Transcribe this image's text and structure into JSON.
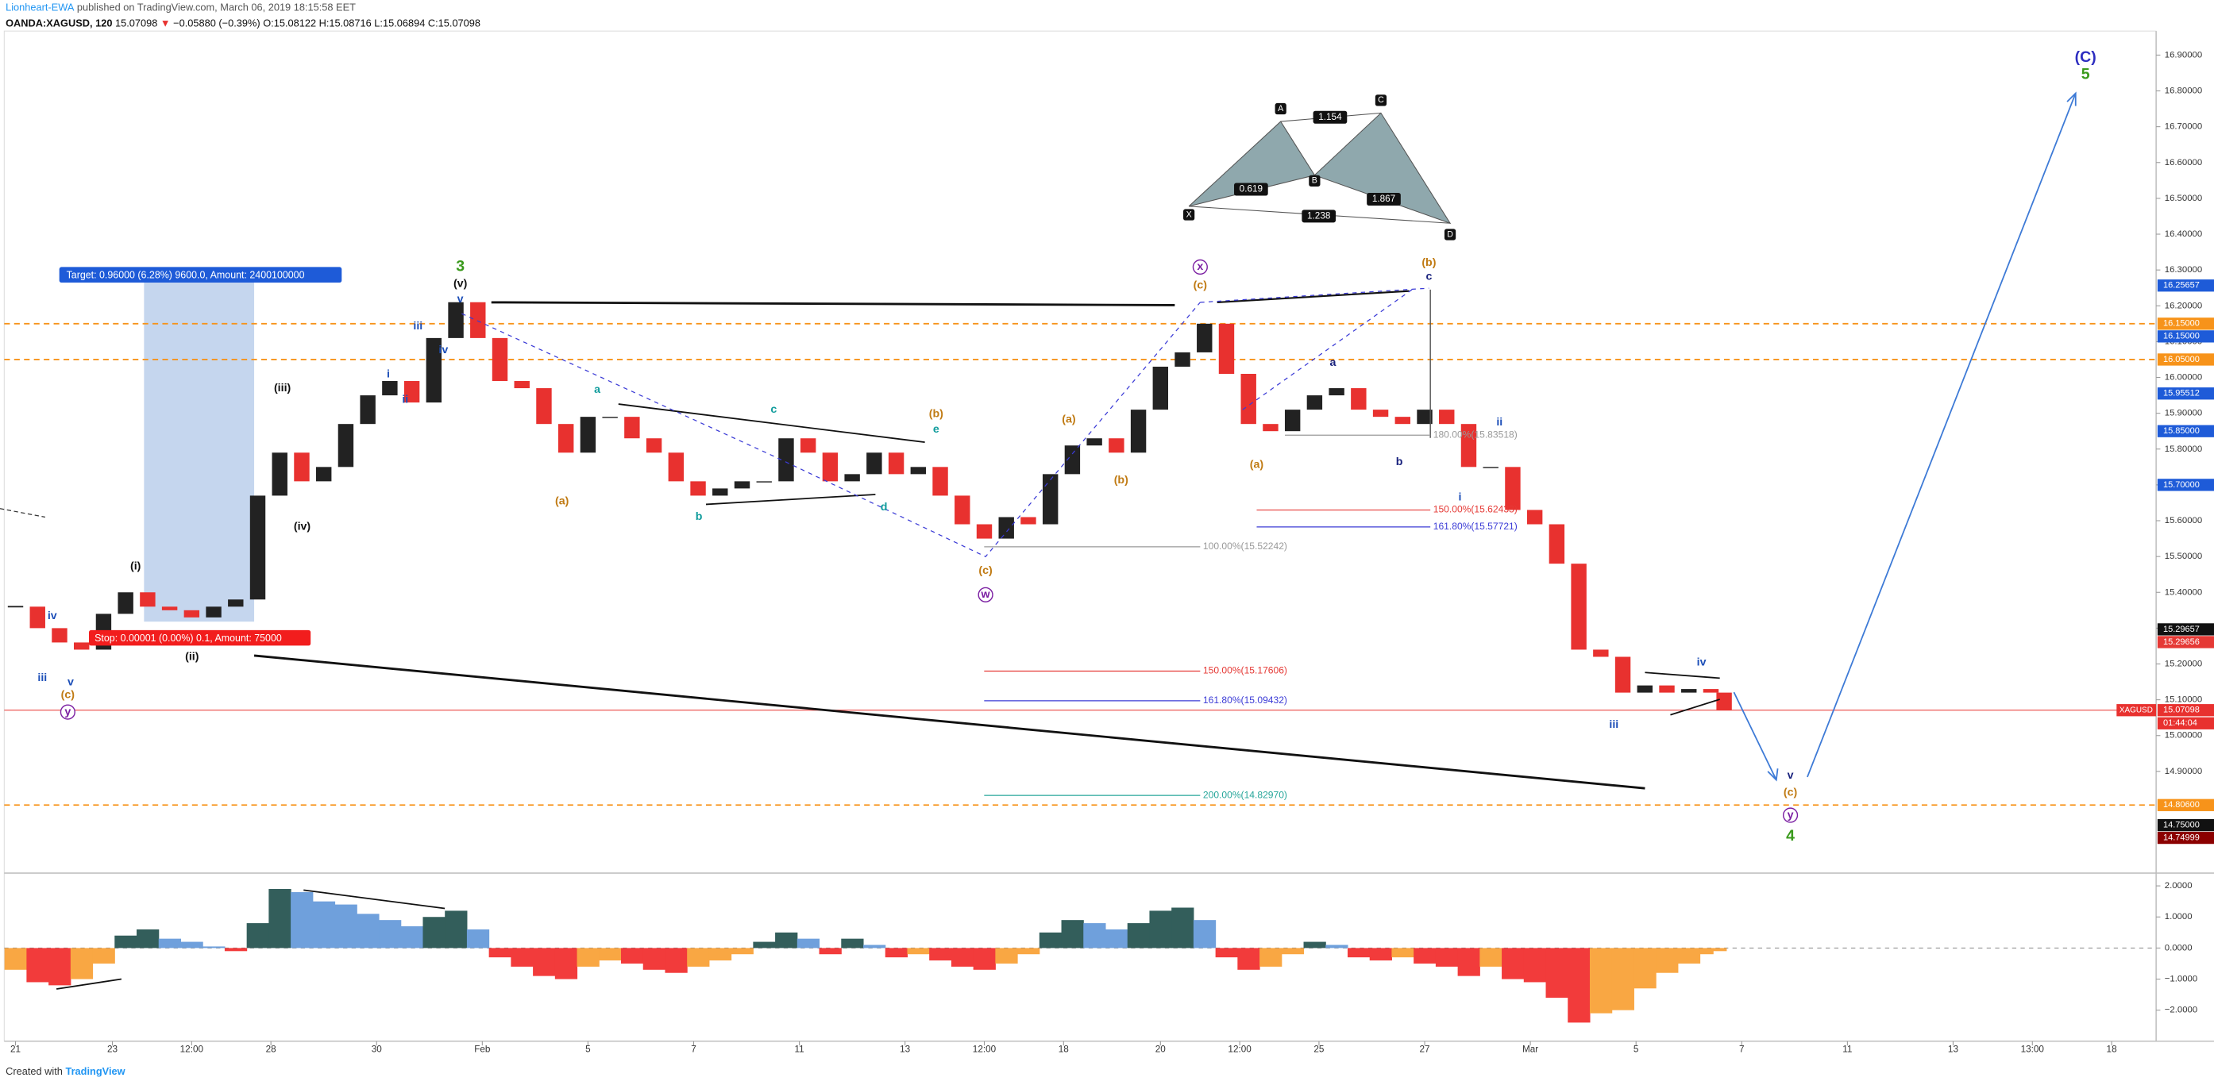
{
  "header": {
    "author": "Lionheart-EWA",
    "published": "published on TradingView.com, March 06, 2019 18:15:58 EET",
    "symbol": "OANDA:XAGUSD, 120",
    "last": "15.07098",
    "arrow": "▼",
    "change": "−0.05880 (−0.39%)",
    "ohlc": "O:15.08122 H:15.08716 L:15.06894 C:15.07098"
  },
  "footer": {
    "prefix": "Created with",
    "brand": "TradingView"
  },
  "position": {
    "target": "Target: 0.96000 (6.28%) 9600.0, Amount: 2400100000",
    "stop": "Stop: 0.00001 (0.00%) 0.1, Amount: 75000"
  },
  "harmonic": {
    "points": [
      "X",
      "A",
      "B",
      "C",
      "D"
    ],
    "ratios": [
      "0.619",
      "1.154",
      "1.867",
      "1.238"
    ]
  },
  "fib_levels": [
    "100.00%(15.52242)",
    "150.00%(15.17606)",
    "161.80%(15.09432)",
    "200.00%(14.82970)",
    "150.00%(15.62433)",
    "161.80%(15.57721)",
    "180.00%(15.83518)"
  ],
  "annotations": [
    {
      "text": "(C)",
      "color": "#2d2dc0"
    },
    {
      "text": "5",
      "color": "#3a9a1c"
    },
    {
      "text": "3",
      "color": "#3a9a1c"
    },
    {
      "text": "(v)",
      "color": "#111111"
    },
    {
      "text": "v",
      "color": "#1d4fb8"
    },
    {
      "text": "iii",
      "color": "#1d4fb8"
    },
    {
      "text": "i",
      "color": "#1d4fb8"
    },
    {
      "text": "ii",
      "color": "#1d4fb8"
    },
    {
      "text": "iv",
      "color": "#1d4fb8"
    },
    {
      "text": "(iii)",
      "color": "#111111"
    },
    {
      "text": "(iv)",
      "color": "#111111"
    },
    {
      "text": "(i)",
      "color": "#111111"
    },
    {
      "text": "(ii)",
      "color": "#111111"
    },
    {
      "text": "iv",
      "color": "#1d4fb8"
    },
    {
      "text": "iii",
      "color": "#1d4fb8"
    },
    {
      "text": "v",
      "color": "#1d4fb8"
    },
    {
      "text": "(c)",
      "color": "#c07a12"
    },
    {
      "text": "y",
      "color": "#7b1fa2"
    },
    {
      "text": "a",
      "color": "#109c9c"
    },
    {
      "text": "b",
      "color": "#109c9c"
    },
    {
      "text": "c",
      "color": "#109c9c"
    },
    {
      "text": "d",
      "color": "#109c9c"
    },
    {
      "text": "e",
      "color": "#109c9c"
    },
    {
      "text": "(b)",
      "color": "#c07a12"
    },
    {
      "text": "(a)",
      "color": "#c07a12"
    },
    {
      "text": "(c)",
      "color": "#c07a12"
    },
    {
      "text": "w",
      "color": "#7b1fa2"
    },
    {
      "text": "(a)",
      "color": "#c07a12"
    },
    {
      "text": "(b)",
      "color": "#c07a12"
    },
    {
      "text": "(c)",
      "color": "#c07a12"
    },
    {
      "text": "x",
      "color": "#7b1fa2"
    },
    {
      "text": "(a)",
      "color": "#c07a12"
    },
    {
      "text": "a",
      "color": "#1a237e"
    },
    {
      "text": "b",
      "color": "#1a237e"
    },
    {
      "text": "c",
      "color": "#1a237e"
    },
    {
      "text": "(b)",
      "color": "#c07a12"
    },
    {
      "text": "i",
      "color": "#1d4fb8"
    },
    {
      "text": "ii",
      "color": "#1d4fb8"
    },
    {
      "text": "iii",
      "color": "#1d4fb8"
    },
    {
      "text": "iv",
      "color": "#1d4fb8"
    },
    {
      "text": "v",
      "color": "#1a237e"
    },
    {
      "text": "(c)",
      "color": "#c07a12"
    },
    {
      "text": "y",
      "color": "#7b1fa2"
    },
    {
      "text": "4",
      "color": "#3a9a1c"
    }
  ],
  "chart_data": [
    {
      "type": "candlestick",
      "x": [
        0,
        5,
        10,
        15,
        20,
        25,
        30,
        35,
        40,
        45,
        50,
        55,
        60,
        65,
        70,
        75,
        80,
        85,
        90,
        95,
        100,
        105,
        110,
        115,
        120,
        125,
        130,
        135,
        140,
        145,
        150,
        155,
        160,
        165,
        170,
        175,
        180,
        185,
        190,
        195,
        200,
        205,
        210,
        215,
        220,
        225,
        230,
        235,
        240,
        245,
        250,
        255,
        260,
        265,
        270,
        275,
        280,
        285,
        290,
        295,
        300,
        305,
        310,
        315,
        320,
        325,
        330,
        335,
        340,
        345,
        350,
        355,
        360,
        365,
        370,
        375,
        380,
        385,
        388
      ],
      "series": [
        {
          "name": "XAGUSD",
          "up_color": "#222222",
          "down_color": "#e8312f",
          "values": [
            15.36,
            15.3,
            15.26,
            15.24,
            15.34,
            15.4,
            15.36,
            15.35,
            15.33,
            15.36,
            15.38,
            15.67,
            15.79,
            15.71,
            15.75,
            15.87,
            15.95,
            15.99,
            15.93,
            16.11,
            16.21,
            16.11,
            15.99,
            15.97,
            15.87,
            15.79,
            15.89,
            15.89,
            15.83,
            15.79,
            15.71,
            15.67,
            15.69,
            15.71,
            15.71,
            15.83,
            15.79,
            15.71,
            15.73,
            15.79,
            15.73,
            15.75,
            15.67,
            15.59,
            15.55,
            15.61,
            15.59,
            15.73,
            15.81,
            15.83,
            15.79,
            15.91,
            16.03,
            16.07,
            16.15,
            16.01,
            15.87,
            15.85,
            15.91,
            15.95,
            15.97,
            15.91,
            15.89,
            15.87,
            15.91,
            15.87,
            15.75,
            15.75,
            15.63,
            15.59,
            15.48,
            15.24,
            15.22,
            15.12,
            15.14,
            15.12,
            15.13,
            15.12,
            15.07098
          ]
        }
      ],
      "xlim": [
        -2.56,
        486.1
      ],
      "ylim": [
        14.62,
        16.967
      ],
      "xticks": [
        {
          "value": 0,
          "label": "21"
        },
        {
          "value": 22,
          "label": "23"
        },
        {
          "value": 40,
          "label": "12:00"
        },
        {
          "value": 58,
          "label": "28"
        },
        {
          "value": 82,
          "label": "30"
        },
        {
          "value": 106,
          "label": "Feb"
        },
        {
          "value": 130,
          "label": "5"
        },
        {
          "value": 154,
          "label": "7"
        },
        {
          "value": 178,
          "label": "11"
        },
        {
          "value": 202,
          "label": "13"
        },
        {
          "value": 220,
          "label": "12:00"
        },
        {
          "value": 238,
          "label": "18"
        },
        {
          "value": 260,
          "label": "20"
        },
        {
          "value": 278,
          "label": "12:00"
        },
        {
          "value": 296,
          "label": "25"
        },
        {
          "value": 320,
          "label": "27"
        },
        {
          "value": 344,
          "label": "Mar"
        },
        {
          "value": 368,
          "label": "5"
        },
        {
          "value": 392,
          "label": "7"
        },
        {
          "value": 416,
          "label": "11"
        },
        {
          "value": 440,
          "label": "13"
        },
        {
          "value": 458,
          "label": "13:00"
        },
        {
          "value": 476,
          "label": "18"
        }
      ],
      "yticks": [
        {
          "value": 14.9,
          "label": "14.90000"
        },
        {
          "value": 15.0,
          "label": "15.00000"
        },
        {
          "value": 15.1,
          "label": "15.10000"
        },
        {
          "value": 15.2,
          "label": "15.20000"
        },
        {
          "value": 15.3,
          "label": "15.30000"
        },
        {
          "value": 15.4,
          "label": "15.40000"
        },
        {
          "value": 15.5,
          "label": "15.50000"
        },
        {
          "value": 15.6,
          "label": "15.60000"
        },
        {
          "value": 15.7,
          "label": "15.70000"
        },
        {
          "value": 15.8,
          "label": "15.80000"
        },
        {
          "value": 15.9,
          "label": "15.90000"
        },
        {
          "value": 16.0,
          "label": "16.00000"
        },
        {
          "value": 16.1,
          "label": "16.10000"
        },
        {
          "value": 16.2,
          "label": "16.20000"
        },
        {
          "value": 16.3,
          "label": "16.30000"
        },
        {
          "value": 16.4,
          "label": "16.40000"
        },
        {
          "value": 16.5,
          "label": "16.50000"
        },
        {
          "value": 16.6,
          "label": "16.60000"
        },
        {
          "value": 16.7,
          "label": "16.70000"
        },
        {
          "value": 16.8,
          "label": "16.80000"
        },
        {
          "value": 16.9,
          "label": "16.90000"
        }
      ],
      "hlines": [
        {
          "value": 16.15,
          "color": "#f7931a",
          "dashed": true
        },
        {
          "value": 16.05,
          "color": "#f7931a",
          "dashed": true
        },
        {
          "value": 14.806,
          "color": "#f7931a",
          "dashed": true
        },
        {
          "value": 15.07098,
          "color": "#e8312f",
          "dashed": false
        }
      ],
      "price_tags": [
        {
          "value": 16.25657,
          "label": "16.25657",
          "color": "#1e5bd8"
        },
        {
          "value": 16.15,
          "label": "16.15000",
          "color": "#f7931a"
        },
        {
          "value": 16.15,
          "label": "16.15000",
          "color": "#1e5bd8"
        },
        {
          "value": 16.05,
          "label": "16.05000",
          "color": "#f7931a"
        },
        {
          "value": 15.95512,
          "label": "15.95512",
          "color": "#1e5bd8"
        },
        {
          "value": 15.85,
          "label": "15.85000",
          "color": "#1e5bd8"
        },
        {
          "value": 15.7,
          "label": "15.70000",
          "color": "#1e5bd8"
        },
        {
          "value": 15.29657,
          "label": "15.29657",
          "color": "#111111"
        },
        {
          "value": 15.29656,
          "label": "15.29656",
          "color": "#e53935"
        },
        {
          "value": 15.07098,
          "label": "15.07098",
          "color": "#e8312f"
        },
        {
          "value": 14.806,
          "label": "14.80600",
          "color": "#f7931a"
        },
        {
          "value": 14.75,
          "label": "14.75000",
          "color": "#111111"
        },
        {
          "value": 14.74999,
          "label": "14.74999",
          "color": "#8b0000"
        }
      ],
      "countdown": "01:44:04"
    },
    {
      "type": "area",
      "x": [
        0,
        5,
        10,
        15,
        20,
        25,
        30,
        35,
        40,
        45,
        50,
        55,
        60,
        65,
        70,
        75,
        80,
        85,
        90,
        95,
        100,
        105,
        110,
        115,
        120,
        125,
        130,
        135,
        140,
        145,
        150,
        155,
        160,
        165,
        170,
        175,
        180,
        185,
        190,
        195,
        200,
        205,
        210,
        215,
        220,
        225,
        230,
        235,
        240,
        245,
        250,
        255,
        260,
        265,
        270,
        275,
        280,
        285,
        290,
        295,
        300,
        305,
        310,
        315,
        320,
        325,
        330,
        335,
        340,
        345,
        350,
        355,
        360,
        365,
        370,
        375,
        380,
        385,
        388
      ],
      "values": [
        -0.7,
        -1.1,
        -1.2,
        -1.0,
        -0.5,
        0.4,
        0.6,
        0.3,
        0.2,
        0.05,
        -0.1,
        0.8,
        1.9,
        1.8,
        1.5,
        1.4,
        1.1,
        0.9,
        0.7,
        1.0,
        1.2,
        0.6,
        -0.3,
        -0.6,
        -0.9,
        -1.0,
        -0.6,
        -0.4,
        -0.5,
        -0.7,
        -0.8,
        -0.6,
        -0.4,
        -0.2,
        0.2,
        0.5,
        0.3,
        -0.2,
        0.3,
        0.1,
        -0.3,
        -0.2,
        -0.4,
        -0.6,
        -0.7,
        -0.5,
        -0.2,
        0.5,
        0.9,
        0.8,
        0.6,
        0.8,
        1.2,
        1.3,
        0.9,
        -0.3,
        -0.7,
        -0.6,
        -0.2,
        0.2,
        0.1,
        -0.3,
        -0.4,
        -0.3,
        -0.5,
        -0.6,
        -0.9,
        -0.6,
        -1.0,
        -1.1,
        -1.6,
        -2.4,
        -2.1,
        -2.0,
        -1.3,
        -0.8,
        -0.5,
        -0.2,
        -0.1
      ],
      "colors": [
        "#335e5b",
        "#6fa0dc",
        "#f23b3b",
        "#f9a743"
      ],
      "xlim": [
        -2.56,
        486.1
      ],
      "ylim": [
        -3.0,
        2.32
      ],
      "yticks": [
        {
          "value": -2,
          "label": "−2.0000"
        },
        {
          "value": -1,
          "label": "−1.0000"
        },
        {
          "value": 0,
          "label": "0.0000"
        },
        {
          "value": 1,
          "label": "1.0000"
        },
        {
          "value": 2,
          "label": "2.0000"
        }
      ]
    }
  ]
}
